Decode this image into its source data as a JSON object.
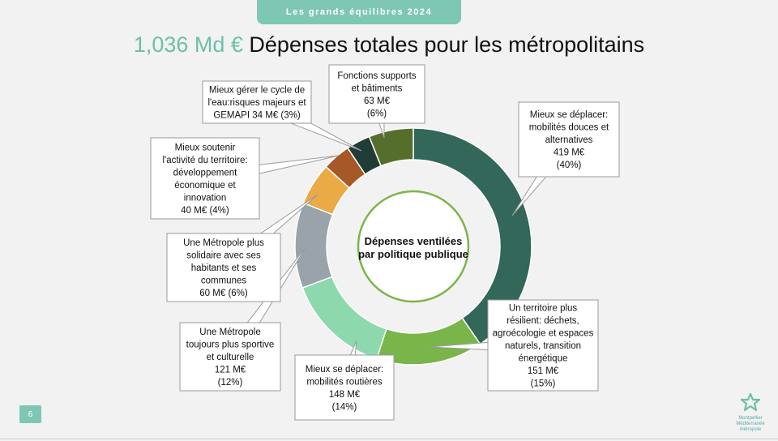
{
  "header": {
    "tab_label": "Les grands équilibres 2024"
  },
  "title": {
    "amount": "1,036 Md €",
    "text": " Dépenses totales pour les métropolitains"
  },
  "center_label": "Dépenses ventilées par politique publique",
  "page_number": "6",
  "logo": {
    "line1": "Montpellier",
    "line2": "Méditerranée",
    "line3": "métropole",
    "icon": "star-flower-icon"
  },
  "chart_data": {
    "type": "pie",
    "variant": "donut",
    "title": "Dépenses ventilées par politique publique",
    "unit": "M€",
    "slices": [
      {
        "label": "Mieux se déplacer: mobilités douces et alternatives",
        "value": 419,
        "percent": 40,
        "color": "#32675a",
        "lines": [
          "Mieux se déplacer:",
          "mobilités douces et",
          "alternatives",
          "419 M€",
          "(40%)"
        ]
      },
      {
        "label": "Un territoire plus résilient: déchets, agroécologie et espaces naturels, transition énergétique",
        "value": 151,
        "percent": 15,
        "color": "#7ab54a",
        "lines": [
          "Un territoire plus",
          "résilient: déchets,",
          "agroécologie et espaces",
          "naturels, transition",
          "énergétique",
          "151 M€",
          "(15%)"
        ]
      },
      {
        "label": "Mieux se déplacer: mobilités routières",
        "value": 148,
        "percent": 14,
        "color": "#8ed8ad",
        "lines": [
          "Mieux se déplacer:",
          "mobilités routières",
          "148 M€",
          "(14%)"
        ]
      },
      {
        "label": "Une Métropole toujours plus sportive et culturelle",
        "value": 121,
        "percent": 12,
        "color": "#9aa3ab",
        "lines": [
          "Une Métropole",
          "toujours plus sportive",
          "et culturelle",
          "121 M€",
          "(12%)"
        ]
      },
      {
        "label": "Une Métropole plus solidaire avec ses habitants et ses communes",
        "value": 60,
        "percent": 6,
        "color": "#eaaa45",
        "lines": [
          "Une Métropole plus",
          "solidaire avec ses",
          "habitants et ses",
          "communes",
          "60 M€  (6%)"
        ]
      },
      {
        "label": "Mieux soutenir l'activité du territoire: développement économique et innovation",
        "value": 40,
        "percent": 4,
        "color": "#a65826",
        "lines": [
          "Mieux soutenir",
          "l'activité du territoire:",
          "développement",
          "économique et",
          "innovation",
          "40 M€  (4%)"
        ]
      },
      {
        "label": "Mieux gérer le cycle de l'eau:risques majeurs et GEMAPI",
        "value": 34,
        "percent": 3,
        "color": "#1f3d36",
        "lines": [
          "Mieux gérer le cycle de",
          "l'eau:risques majeurs et",
          "GEMAPI 34 M€ (3%)"
        ]
      },
      {
        "label": "Fonctions supports et bâtiments",
        "value": 63,
        "percent": 6,
        "color": "#566e2c",
        "lines": [
          "Fonctions supports",
          "et bâtiments",
          "63 M€",
          "(6%)"
        ]
      }
    ]
  }
}
